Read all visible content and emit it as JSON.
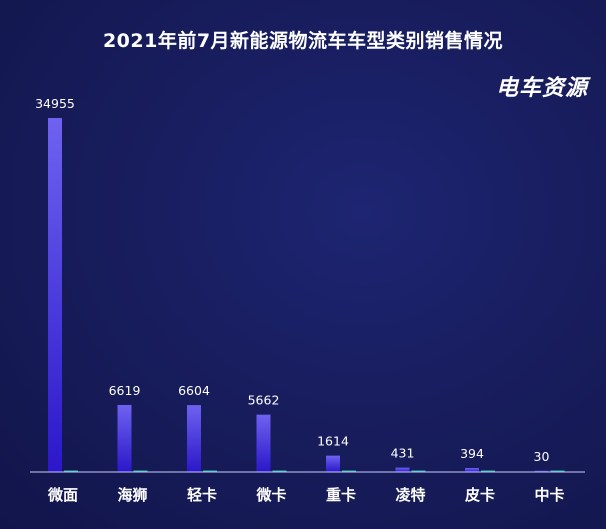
{
  "title": "2021年前7月新能源物流车车型类别销售情况",
  "watermark": "电车资源",
  "colors": {
    "bar_top": "#6f62f0",
    "bar_bottom": "#2b17c9",
    "secondary_bar": "#27c3a8",
    "axis": "#c8ccff",
    "background": "#171c5c"
  },
  "chart_data": {
    "type": "bar",
    "title": "2021年前7月新能源物流车车型类别销售情况",
    "categories": [
      "微面",
      "海狮",
      "轻卡",
      "微卡",
      "重卡",
      "凌特",
      "皮卡",
      "中卡"
    ],
    "values": [
      34955,
      6619,
      6604,
      5662,
      1614,
      431,
      394,
      30
    ],
    "value_labels": [
      "34955",
      "6619",
      "6604",
      "5662",
      "1614",
      "431",
      "394",
      "30"
    ],
    "ylim": [
      0,
      34955
    ],
    "xlabel": "",
    "ylabel": "",
    "grid": false,
    "legend": "none"
  }
}
